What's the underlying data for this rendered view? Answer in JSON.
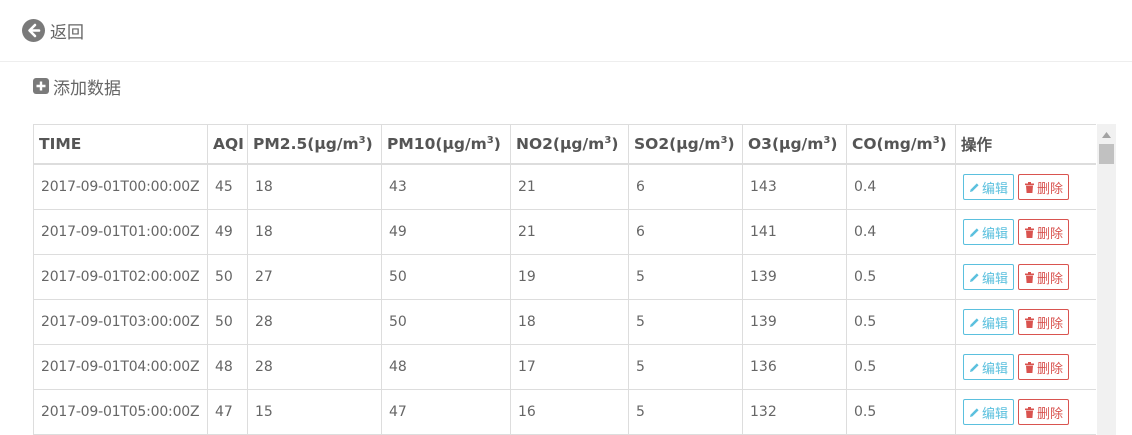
{
  "nav": {
    "back_label": "返回"
  },
  "toolbar": {
    "add_label": "添加数据"
  },
  "table": {
    "headers": {
      "time": "TIME",
      "aqi": "AQI",
      "pm25": "PM2.5(μg/m",
      "pm10": "PM10(μg/m",
      "no2": "NO2(μg/m",
      "so2": "SO2(μg/m",
      "o3": "O3(μg/m",
      "co": "CO(mg/m",
      "actions": "操作",
      "unit_sup": "3",
      "unit_close": ")"
    },
    "edit_label": "编辑",
    "delete_label": "删除",
    "rows": [
      {
        "time": "2017-09-01T00:00:00Z",
        "aqi": "45",
        "pm25": "18",
        "pm10": "43",
        "no2": "21",
        "so2": "6",
        "o3": "143",
        "co": "0.4"
      },
      {
        "time": "2017-09-01T01:00:00Z",
        "aqi": "49",
        "pm25": "18",
        "pm10": "49",
        "no2": "21",
        "so2": "6",
        "o3": "141",
        "co": "0.4"
      },
      {
        "time": "2017-09-01T02:00:00Z",
        "aqi": "50",
        "pm25": "27",
        "pm10": "50",
        "no2": "19",
        "so2": "5",
        "o3": "139",
        "co": "0.5"
      },
      {
        "time": "2017-09-01T03:00:00Z",
        "aqi": "50",
        "pm25": "28",
        "pm10": "50",
        "no2": "18",
        "so2": "5",
        "o3": "139",
        "co": "0.5"
      },
      {
        "time": "2017-09-01T04:00:00Z",
        "aqi": "48",
        "pm25": "28",
        "pm10": "48",
        "no2": "17",
        "so2": "5",
        "o3": "136",
        "co": "0.5"
      },
      {
        "time": "2017-09-01T05:00:00Z",
        "aqi": "47",
        "pm25": "15",
        "pm10": "47",
        "no2": "16",
        "so2": "5",
        "o3": "132",
        "co": "0.5"
      }
    ]
  },
  "colors": {
    "edit": "#5bc0de",
    "delete": "#d9534f",
    "icon": "#7a7a7a"
  },
  "icons": {
    "back": "circle-arrow-left-icon",
    "add": "plus-square-icon",
    "edit": "pencil-icon",
    "delete": "trash-icon"
  }
}
